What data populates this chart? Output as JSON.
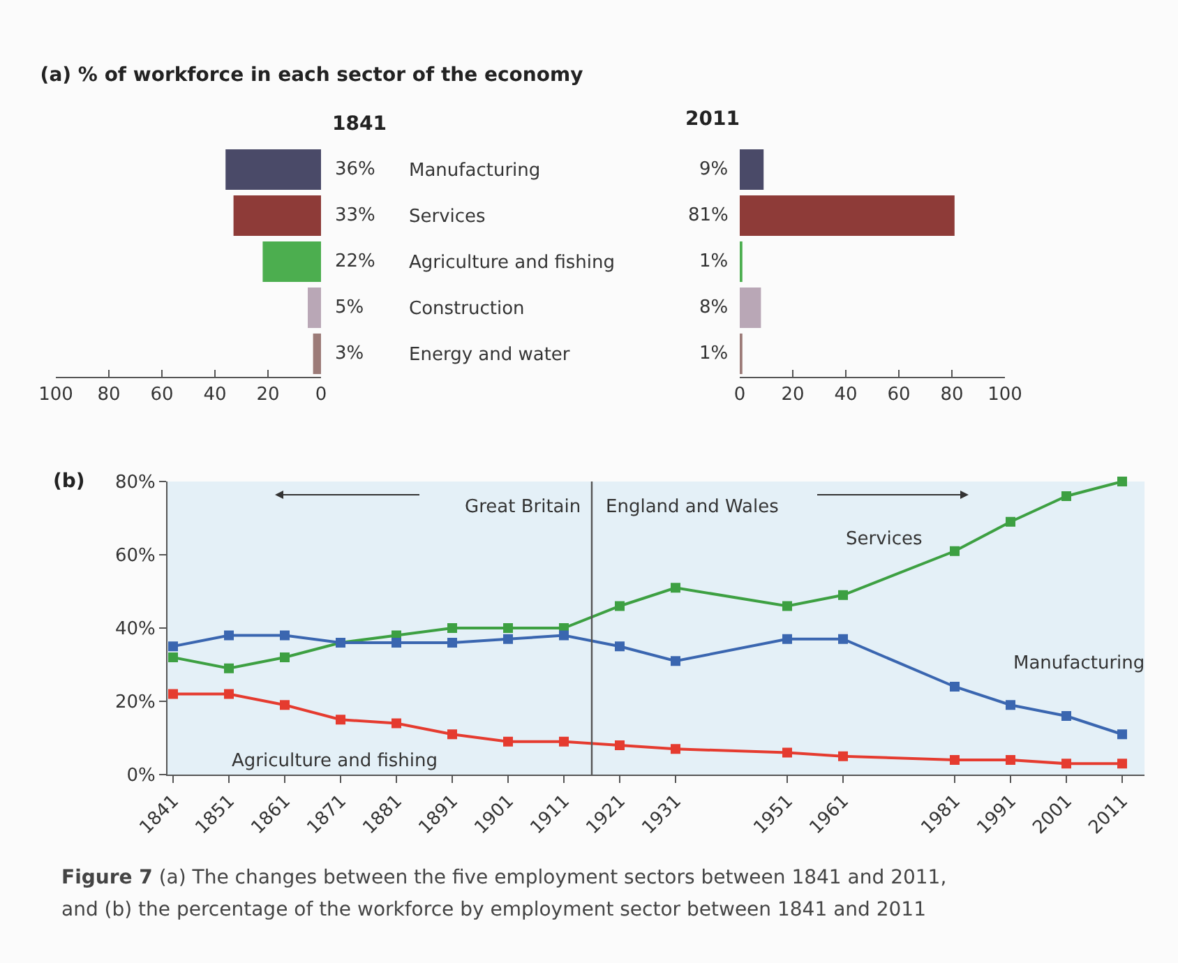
{
  "chart_data": [
    {
      "type": "bar",
      "orientation": "horizontal",
      "title": "(a) % of workforce in each sector of the economy",
      "subtitle": "1841",
      "categories": [
        "Manufacturing",
        "Services",
        "Agriculture and fishing",
        "Construction",
        "Energy and water"
      ],
      "values": [
        36,
        33,
        22,
        5,
        3
      ],
      "colors": [
        "#4a4a68",
        "#8e3b38",
        "#4cae4f",
        "#b9a7b6",
        "#9c7b78"
      ],
      "value_labels": [
        "36%",
        "33%",
        "22%",
        "5%",
        "3%"
      ],
      "xlim": [
        100,
        0
      ],
      "xticks": [
        100,
        80,
        60,
        40,
        20,
        0
      ],
      "grid": false,
      "legend": false
    },
    {
      "type": "bar",
      "orientation": "horizontal",
      "title": "2011",
      "categories": [
        null,
        null,
        null,
        null,
        null
      ],
      "values": [
        9,
        81,
        1,
        8,
        1
      ],
      "colors": [
        "#4a4a68",
        "#8e3b38",
        "#4cae4f",
        "#b9a7b6",
        "#9c7b78"
      ],
      "value_labels": [
        "9%",
        "81%",
        "1%",
        "8%",
        "1%"
      ],
      "xlim": [
        0,
        100
      ],
      "xticks": [
        0,
        20,
        40,
        60,
        80,
        100
      ],
      "tick_labels": "x",
      "grid": false,
      "legend": false
    },
    {
      "type": "line",
      "title": "(b)",
      "x": [
        1841,
        1851,
        1861,
        1871,
        1881,
        1891,
        1901,
        1911,
        1921,
        1931,
        1951,
        1961,
        1981,
        1991,
        2001,
        2011
      ],
      "series": [
        {
          "name": "Services",
          "color": "#3da042",
          "values": [
            32,
            29,
            32,
            36,
            38,
            40,
            40,
            40,
            46,
            51,
            46,
            49,
            61,
            69,
            76,
            80
          ]
        },
        {
          "name": "Manufacturing",
          "color": "#3a66b0",
          "values": [
            35,
            38,
            38,
            36,
            36,
            36,
            37,
            38,
            35,
            31,
            37,
            37,
            24,
            19,
            16,
            11
          ]
        },
        {
          "name": "Agriculture and fishing",
          "color": "#e53b2f",
          "values": [
            22,
            22,
            19,
            15,
            14,
            11,
            9,
            9,
            8,
            7,
            6,
            5,
            4,
            4,
            3,
            3
          ]
        }
      ],
      "xlim": [
        1840,
        2015
      ],
      "xticks": [
        1841,
        1851,
        1861,
        1871,
        1881,
        1891,
        1901,
        1911,
        1921,
        1931,
        1951,
        1961,
        1981,
        1991,
        2001,
        2011
      ],
      "ylim": [
        0,
        80
      ],
      "yticks": [
        {
          "value": 0,
          "label": "0%"
        },
        {
          "value": 20,
          "label": "20%"
        },
        {
          "value": 40,
          "label": "40%"
        },
        {
          "value": 60,
          "label": "60%"
        },
        {
          "value": 80,
          "label": "80%"
        }
      ],
      "ref_lines": [
        {
          "axis": "x",
          "value": 1916,
          "color": "#555555"
        }
      ],
      "annotations": [
        "Great Britain",
        "England and Wales",
        "Figure 7 (a) The changes between the five employment sectors between 1841 and 2011,",
        "and (b) the percentage of the workforce by employment sector between 1841 and 2011"
      ],
      "marker": "square",
      "line_style": "solid",
      "grid": false,
      "legend": false
    }
  ]
}
